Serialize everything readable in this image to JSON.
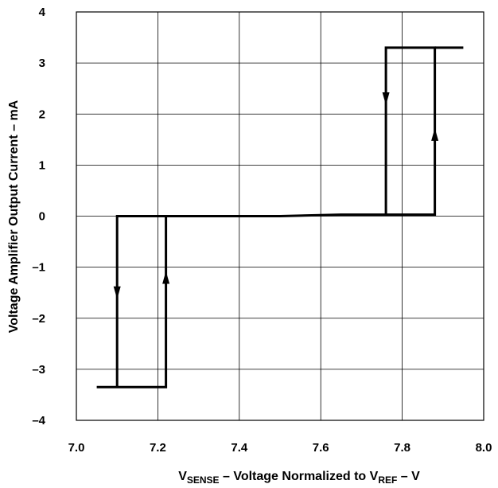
{
  "chart_data": {
    "type": "line",
    "xlabel": {
      "prefix": "V",
      "sub1": "SENSE",
      "middle": " – Voltage Normalized to V",
      "sub2": "REF",
      "suffix": " – V"
    },
    "ylabel": "Voltage Amplifier Output Current – mA",
    "xlim": [
      7.0,
      8.0
    ],
    "ylim": [
      -4,
      4
    ],
    "x_ticks": [
      "7.0",
      "7.2",
      "7.4",
      "7.6",
      "7.8",
      "8.0"
    ],
    "y_ticks": [
      "–4",
      "–3",
      "–2",
      "–1",
      "0",
      "1",
      "2",
      "3",
      "4"
    ],
    "grid": true,
    "series": [
      {
        "points": [
          [
            7.05,
            -3.35
          ],
          [
            7.1,
            -3.35
          ],
          [
            7.1,
            0.0
          ],
          [
            7.22,
            0.0
          ],
          [
            7.22,
            -3.35
          ],
          [
            7.1,
            -3.35
          ]
        ],
        "color": "#000000"
      },
      {
        "points": [
          [
            7.1,
            0.0
          ],
          [
            7.5,
            0.0
          ],
          [
            7.65,
            0.03
          ],
          [
            7.76,
            0.03
          ],
          [
            7.76,
            3.3
          ],
          [
            7.88,
            3.3
          ],
          [
            7.88,
            0.03
          ],
          [
            7.76,
            0.03
          ]
        ],
        "color": "#000000"
      },
      {
        "points": [
          [
            7.88,
            3.3
          ],
          [
            7.95,
            3.3
          ]
        ],
        "color": "#000000"
      }
    ],
    "arrows": [
      {
        "x": 7.1,
        "y": -1.5,
        "direction": "down"
      },
      {
        "x": 7.22,
        "y": -1.2,
        "direction": "up"
      },
      {
        "x": 7.76,
        "y": 2.3,
        "direction": "down"
      },
      {
        "x": 7.88,
        "y": 1.6,
        "direction": "up"
      }
    ]
  }
}
